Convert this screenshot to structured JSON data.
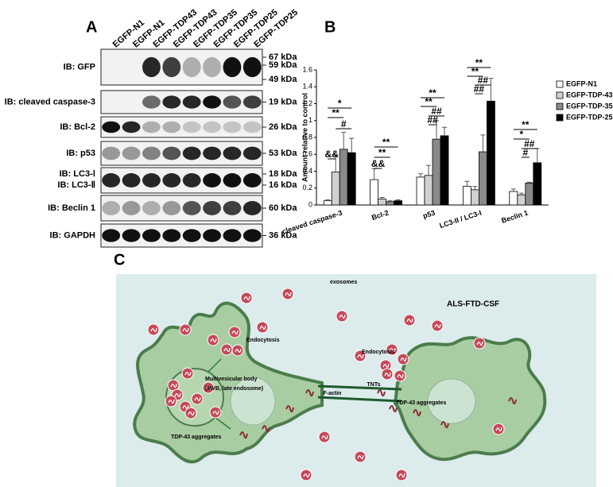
{
  "panel_labels": [
    "A",
    "B",
    "C"
  ],
  "panel_a": {
    "lanes": [
      "EGFP-N1",
      "EGFP-N1",
      "EGFP-TDP43",
      "EGFP-TDP43",
      "EGFP-TDP35",
      "EGFP-TDP35",
      "EGFP-TDP25",
      "EGFP-TDP25"
    ],
    "rows": [
      {
        "label": "IB: GFP",
        "markers": [
          "67 kDa",
          "59 kDa",
          "49 kDa"
        ]
      },
      {
        "label": "IB: cleaved caspase-3",
        "markers": [
          "19 kDa"
        ]
      },
      {
        "label": "IB: Bcl-2",
        "markers": [
          "26 kDa"
        ]
      },
      {
        "label": "IB: p53",
        "markers": [
          "53 kDa"
        ]
      },
      {
        "label": "IB: LC3-Ⅰ",
        "markers": [
          "18 kDa"
        ]
      },
      {
        "label": "IB: LC3-Ⅱ",
        "markers": [
          "16 kDa"
        ]
      },
      {
        "label": "IB: Beclin 1",
        "markers": [
          "60 kDa"
        ]
      },
      {
        "label": "IB: GAPDH",
        "markers": [
          "36 kDa"
        ]
      }
    ]
  },
  "chart_data": {
    "type": "bar",
    "y_label": "Amount relative to control",
    "categories": [
      "cleaved caspase-3",
      "Bcl-2",
      "p53",
      "LC3-II / LC3-I",
      "Beclin 1"
    ],
    "series": [
      {
        "name": "EGFP-N1",
        "color": "#ffffff",
        "values": [
          0.05,
          0.3,
          0.33,
          0.22,
          0.16
        ],
        "errors": [
          0.01,
          0.13,
          0.04,
          0.06,
          0.03
        ]
      },
      {
        "name": "EGFP-TDP-43",
        "color": "#d0d0d0",
        "values": [
          0.39,
          0.07,
          0.35,
          0.18,
          0.12
        ],
        "errors": [
          0.2,
          0.02,
          0.12,
          0.04,
          0.02
        ]
      },
      {
        "name": "EGFP-TDP-35",
        "color": "#8a8a8a",
        "values": [
          0.66,
          0.04,
          0.78,
          0.63,
          0.26
        ],
        "errors": [
          0.2,
          0.01,
          0.22,
          0.2,
          0.01
        ]
      },
      {
        "name": "EGFP-TDP-25",
        "color": "#000000",
        "values": [
          0.62,
          0.05,
          0.82,
          1.23,
          0.5
        ],
        "errors": [
          0.17,
          0.01,
          0.1,
          0.27,
          0.17
        ]
      }
    ],
    "ylim": [
      0,
      1.6
    ],
    "yticks": [
      0,
      0.2,
      0.4,
      0.6,
      0.8,
      1,
      1.2,
      1.4,
      1.6
    ],
    "annotations": [
      [
        "*",
        "**",
        "#",
        "&&"
      ],
      [
        "**",
        "**",
        "&&"
      ],
      [
        "**",
        "**",
        "##",
        "##"
      ],
      [
        "**",
        "**",
        "##",
        "##"
      ],
      [
        "**",
        "*",
        "##",
        "#"
      ]
    ]
  },
  "panel_c": {
    "labels": [
      "exosomes",
      "ALS-FTD-CSF",
      "Endocytosis",
      "Endocytosis",
      "Multivesicular body",
      "(MVB, late endosome)",
      "TNTs",
      "F-actin",
      "TDP-43 aggregates",
      "TDP-43 aggregates"
    ]
  }
}
